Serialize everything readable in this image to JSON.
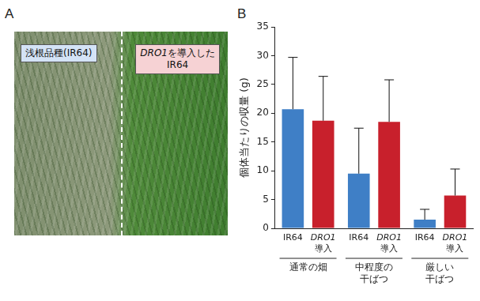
{
  "panel_a": {
    "letter": "A",
    "labels": [
      "浅根品種(IR64)",
      "DRO1を導入したIR64"
    ]
  },
  "panel_b_letter": "B",
  "chart_data": {
    "type": "bar",
    "y_label": "個体当たりの収量 (g)",
    "categories": [
      "通常の畑",
      "中程度の干ばつ",
      "厳しい干ばつ"
    ],
    "series": [
      {
        "name": "IR64",
        "color": "#3f7fc6",
        "values": [
          20.7,
          9.5,
          1.5
        ],
        "errors": [
          9.0,
          7.9,
          1.8
        ]
      },
      {
        "name": "DRO1導入",
        "color": "#c8202c",
        "values": [
          18.7,
          18.5,
          5.7
        ],
        "errors": [
          7.7,
          7.3,
          4.6
        ]
      }
    ],
    "ylim": [
      0,
      35
    ],
    "yticks": [
      0,
      5,
      10,
      15,
      20,
      25,
      30,
      35
    ],
    "grid": false
  }
}
